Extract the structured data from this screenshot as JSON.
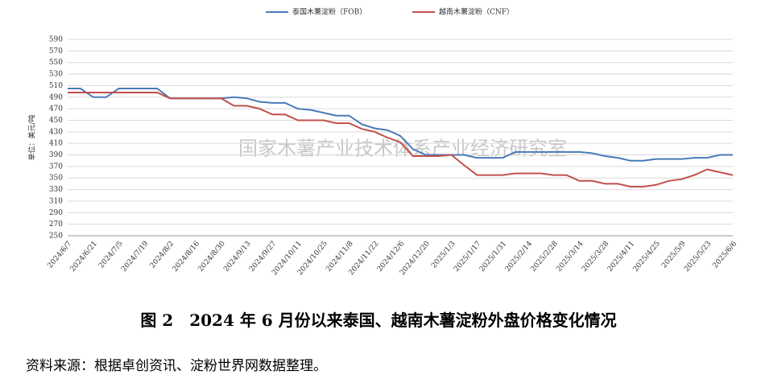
{
  "chart_data": {
    "type": "line",
    "y_label": "单位：美元/吨",
    "categories": [
      "2024/6/7",
      null,
      "2024/6/21",
      null,
      "2024/7/5",
      null,
      "2024/7/19",
      null,
      "2024/8/2",
      null,
      "2024/8/16",
      null,
      "2024/8/30",
      null,
      "2024/9/13",
      null,
      "2024/9/27",
      null,
      "2024/10/11",
      null,
      "2024/10/25",
      null,
      "2024/11/8",
      null,
      "2024/11/22",
      null,
      "2024/12/6",
      null,
      "2024/12/20",
      null,
      "2025/1/3",
      null,
      "2025/1/17",
      null,
      "2025/1/31",
      null,
      "2025/2/14",
      null,
      "2025/2/28",
      null,
      "2025/3/14",
      null,
      "2025/3/28",
      null,
      "2025/4/11",
      null,
      "2025/4/25",
      null,
      "2025/5/9",
      null,
      "2025/5/23",
      null,
      "2025/6/6"
    ],
    "series": [
      {
        "name": "泰国木薯淀粉（FOB）",
        "color": "#4a7ab8",
        "values": [
          505,
          505,
          490,
          490,
          505,
          505,
          505,
          505,
          488,
          488,
          488,
          488,
          488,
          490,
          488,
          482,
          480,
          480,
          470,
          468,
          463,
          458,
          458,
          443,
          436,
          433,
          423,
          400,
          390,
          390,
          390,
          390,
          385,
          385,
          385,
          395,
          395,
          395,
          395,
          395,
          395,
          393,
          388,
          385,
          380,
          380,
          383,
          383,
          383,
          385,
          385,
          390,
          390
        ]
      },
      {
        "name": "越南木薯淀粉（CNF）",
        "color": "#c0504d",
        "values": [
          498,
          498,
          498,
          498,
          498,
          498,
          498,
          498,
          488,
          488,
          488,
          488,
          488,
          475,
          475,
          470,
          460,
          460,
          450,
          450,
          450,
          445,
          445,
          435,
          430,
          420,
          412,
          388,
          388,
          388,
          390,
          372,
          355,
          355,
          355,
          358,
          358,
          358,
          355,
          355,
          345,
          345,
          340,
          340,
          335,
          335,
          338,
          345,
          348,
          355,
          365,
          360,
          355
        ]
      }
    ],
    "ylim": [
      250,
      590
    ],
    "yticks": [
      250,
      270,
      290,
      310,
      330,
      350,
      370,
      390,
      410,
      430,
      450,
      470,
      490,
      510,
      530,
      550,
      570,
      590
    ],
    "grid": true,
    "legend": "top"
  },
  "watermark": "国家木薯产业技术体系产业经济研究室",
  "caption": "图 2　2024 年 6 月份以来泰国、越南木薯淀粉外盘价格变化情况",
  "source": "资料来源：根据卓创资讯、淀粉世界网数据整理。"
}
